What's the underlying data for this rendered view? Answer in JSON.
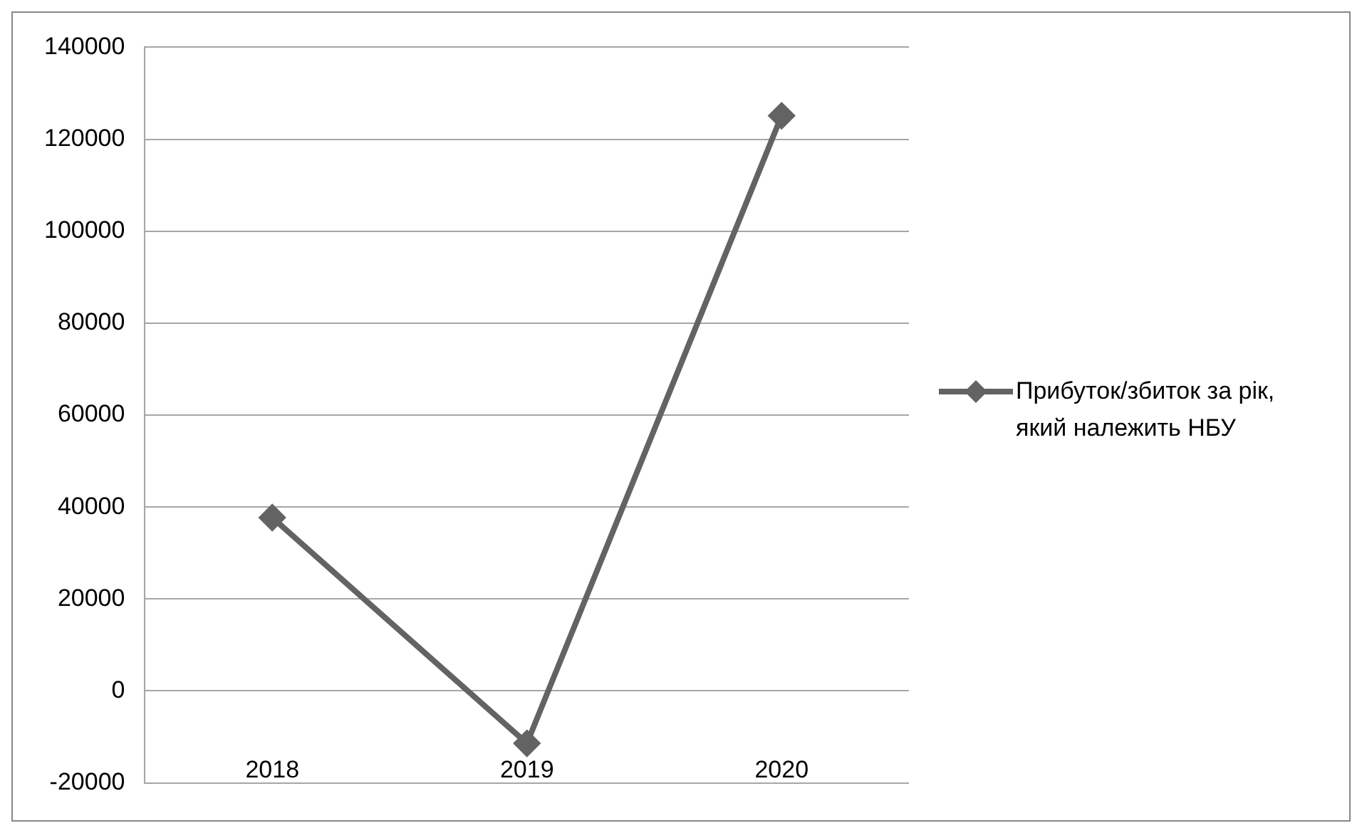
{
  "chart_data": {
    "type": "line",
    "categories": [
      "2018",
      "2019",
      "2020"
    ],
    "series": [
      {
        "name": "Прибуток/збиток за рік, який належить НБУ",
        "color": "#636363",
        "values": [
          37700,
          -11400,
          125100
        ]
      }
    ],
    "ylim": [
      -20000,
      140000
    ],
    "yticks": [
      -20000,
      0,
      20000,
      40000,
      60000,
      80000,
      100000,
      120000,
      140000
    ],
    "grid": "y",
    "legend": "right",
    "marker": "diamond",
    "line_style": "solid"
  }
}
